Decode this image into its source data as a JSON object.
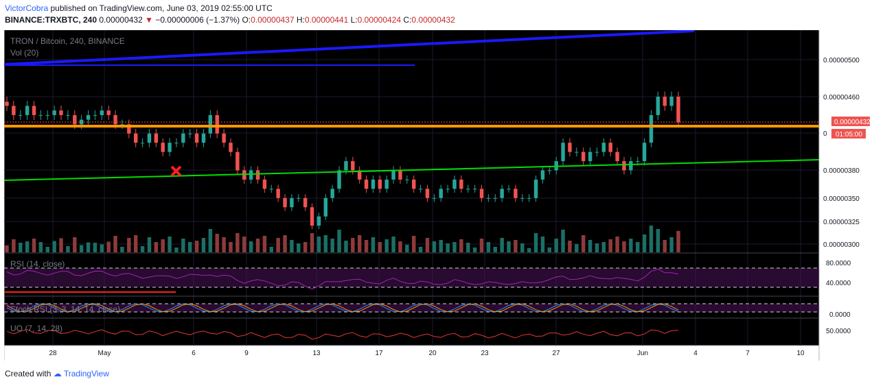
{
  "header": {
    "author": "VictorCobra",
    "published": "published on TradingView.com, June 03, 2019 02:55:00 UTC",
    "symbol_line": "BINANCE:TRXBTC, 240",
    "last": "0.00000432",
    "change_arrow": "▼",
    "change": "−0.00000006 (−1.37%)",
    "o_label": "O:",
    "o": "0.00000437",
    "h_label": "H:",
    "h": "0.00000441",
    "l_label": "L:",
    "l": "0.00000424",
    "c_label": "C:",
    "c": "0.00000432"
  },
  "footer": {
    "created_with": "Created with",
    "brand": "TradingView"
  },
  "colors": {
    "bg": "#000000",
    "up": "#26a69a",
    "down": "#ef5350",
    "resistance": "#ff9800",
    "trend_green": "#00e000",
    "trend_blue": "#1a1aff",
    "rsi": "#9c27b0",
    "stoch_k": "#2196f3",
    "stoch_d": "#ff9800",
    "uo": "#e53935",
    "price_tag": "#ef5350"
  },
  "chart_data": {
    "type": "candlestick",
    "title": "TRON / Bitcoin, 240, BINANCE",
    "volume_label": "Vol (20)",
    "price_axis": {
      "ticks": [
        "0.00000500",
        "0.00000460",
        "0.00000432",
        "0.00000380",
        "0.00000350",
        "0.00000325",
        "0.00000300"
      ],
      "countdown": "01:05:00",
      "partial_tick": "0"
    },
    "x_ticks": [
      "28",
      "May",
      "6",
      "9",
      "13",
      "17",
      "20",
      "23",
      "27",
      "Jun",
      "4",
      "7",
      "10"
    ],
    "last_price": 4.32e-06,
    "closes": [
      4.5e-06,
      4.4e-06,
      4.4e-06,
      4.5e-06,
      4.4e-06,
      4.4e-06,
      4.4e-06,
      4.45e-06,
      4.4e-06,
      4.4e-06,
      4.3e-06,
      4.35e-06,
      4.4e-06,
      4.4e-06,
      4.45e-06,
      4.4e-06,
      4.3e-06,
      4.3e-06,
      4.2e-06,
      4.1e-06,
      4.1e-06,
      4.2e-06,
      4.1e-06,
      4e-06,
      4.1e-06,
      4.1e-06,
      4.2e-06,
      4.2e-06,
      4.1e-06,
      4.2e-06,
      4.4e-06,
      4.2e-06,
      4.1e-06,
      4e-06,
      3.8e-06,
      3.7e-06,
      3.8e-06,
      3.7e-06,
      3.6e-06,
      3.6e-06,
      3.5e-06,
      3.4e-06,
      3.5e-06,
      3.5e-06,
      3.4e-06,
      3.2e-06,
      3.3e-06,
      3.5e-06,
      3.6e-06,
      3.8e-06,
      3.9e-06,
      3.8e-06,
      3.7e-06,
      3.6e-06,
      3.7e-06,
      3.6e-06,
      3.7e-06,
      3.8e-06,
      3.7e-06,
      3.7e-06,
      3.6e-06,
      3.6e-06,
      3.5e-06,
      3.5e-06,
      3.6e-06,
      3.6e-06,
      3.7e-06,
      3.6e-06,
      3.6e-06,
      3.6e-06,
      3.5e-06,
      3.5e-06,
      3.5e-06,
      3.6e-06,
      3.6e-06,
      3.5e-06,
      3.5e-06,
      3.5e-06,
      3.7e-06,
      3.8e-06,
      3.8e-06,
      3.9e-06,
      4.1e-06,
      4e-06,
      4e-06,
      3.9e-06,
      4e-06,
      4e-06,
      4.1e-06,
      4e-06,
      3.9e-06,
      3.8e-06,
      3.9e-06,
      3.9e-06,
      4.1e-06,
      4.4e-06,
      4.6e-06,
      4.5e-06,
      4.6e-06,
      4.32e-06
    ],
    "indicators": [
      {
        "name": "RSI (14, close)",
        "levels": [
          "80.0000",
          "40.0000"
        ]
      },
      {
        "name": "Stoch RSI (3, 3, 14, 14, close)",
        "levels": [
          "0.0000"
        ]
      },
      {
        "name": "UO (7, 14, 28)",
        "levels": [
          "50.0000"
        ]
      }
    ],
    "drawings": [
      {
        "name": "resistance",
        "price": 4.32e-06
      },
      {
        "name": "green trendline",
        "from": 3.75e-06,
        "to": 3.95e-06
      },
      {
        "name": "blue trendline",
        "from": 4.94e-06,
        "to": 5.32e-06
      },
      {
        "name": "blue horizontal",
        "price": 4.94e-06
      }
    ]
  }
}
